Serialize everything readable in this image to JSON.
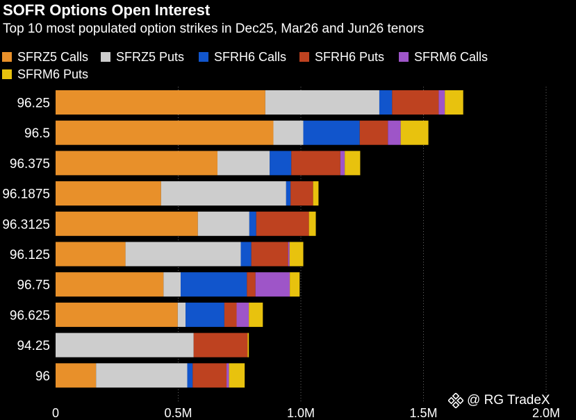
{
  "title": "SOFR Options Open Interest",
  "subtitle": "Top 10 most populated option strikes in Dec25, Mar26 and Jun26 tenors",
  "watermark": "@ RG TradeX",
  "chart_data": {
    "type": "bar",
    "orientation": "horizontal",
    "stacked": true,
    "title": "SOFR Options Open Interest",
    "subtitle": "Top 10 most populated option strikes in Dec25, Mar26 and Jun26 tenors",
    "xlabel": "",
    "ylabel": "",
    "xlim": [
      0,
      2000000
    ],
    "x_ticks": [
      0,
      500000,
      1000000,
      1500000,
      2000000
    ],
    "x_tick_labels": [
      "0",
      "0.5M",
      "1.0M",
      "1.5M",
      "2.0M"
    ],
    "grid": "vertical dotted",
    "legend_position": "top-left",
    "categories": [
      "96.25",
      "96.5",
      "96.375",
      "96.1875",
      "96.3125",
      "96.125",
      "96.75",
      "96.625",
      "94.25",
      "96"
    ],
    "series": [
      {
        "name": "SFRZ5 Calls",
        "color": "#E8902A",
        "values": [
          855000,
          888000,
          660000,
          430000,
          580000,
          285000,
          440000,
          498000,
          0,
          165000
        ]
      },
      {
        "name": "SFRZ5 Puts",
        "color": "#CDCDCD",
        "values": [
          465000,
          122000,
          213000,
          510000,
          210000,
          470000,
          70000,
          32000,
          563000,
          372000
        ]
      },
      {
        "name": "SFRH6 Calls",
        "color": "#1155CC",
        "values": [
          52000,
          230000,
          88000,
          18000,
          28000,
          43000,
          270000,
          158000,
          0,
          22000
        ]
      },
      {
        "name": "SFRH6 Puts",
        "color": "#BE4220",
        "values": [
          190000,
          115000,
          200000,
          92000,
          215000,
          150000,
          35000,
          50000,
          220000,
          138000
        ]
      },
      {
        "name": "SFRM6 Calls",
        "color": "#9E55C8",
        "values": [
          25000,
          52000,
          18000,
          0,
          0,
          6000,
          140000,
          50000,
          0,
          10000
        ]
      },
      {
        "name": "SFRM6 Puts",
        "color": "#E8C20E",
        "values": [
          75000,
          113000,
          63000,
          22000,
          28000,
          56000,
          40000,
          57000,
          5000,
          64000
        ]
      }
    ]
  }
}
